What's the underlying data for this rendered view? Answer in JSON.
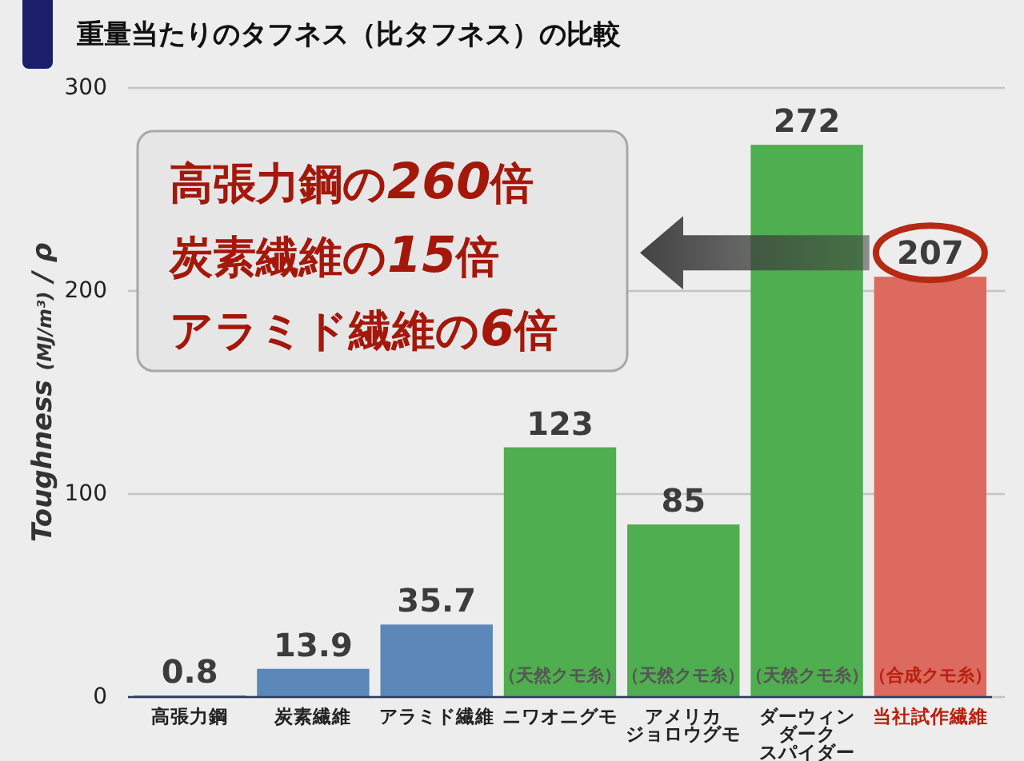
{
  "chart_data": {
    "type": "bar",
    "title": "重量当たりのタフネス（比タフネス）の比較",
    "ylabel": "Toughness (MJ/m³) / ρ",
    "categories": [
      "高張力鋼",
      "炭素繊維",
      "アラミド繊維",
      "ニワオニグモ",
      "アメリカジョロウグモ",
      "ダーウィンダークスパイダー",
      "当社試作繊維"
    ],
    "values": [
      0.8,
      13.9,
      35.7,
      123,
      85,
      272,
      207
    ],
    "colors": [
      "#5b87b9",
      "#5b87b9",
      "#5b87b9",
      "#4fae4f",
      "#4fae4f",
      "#4fae4f",
      "#dc6a5e"
    ],
    "ylim": [
      0,
      300
    ],
    "yticks": [
      0,
      100,
      200,
      300
    ],
    "grid": "y",
    "legend": false,
    "data_labels": true,
    "annotations": [
      "高張力鋼の260倍",
      "炭素繊維の15倍",
      "アラミド繊維の6倍",
      "（天然クモ糸）",
      "（天然クモ糸）",
      "（天然クモ糸）",
      "（合成クモ糸）"
    ]
  }
}
